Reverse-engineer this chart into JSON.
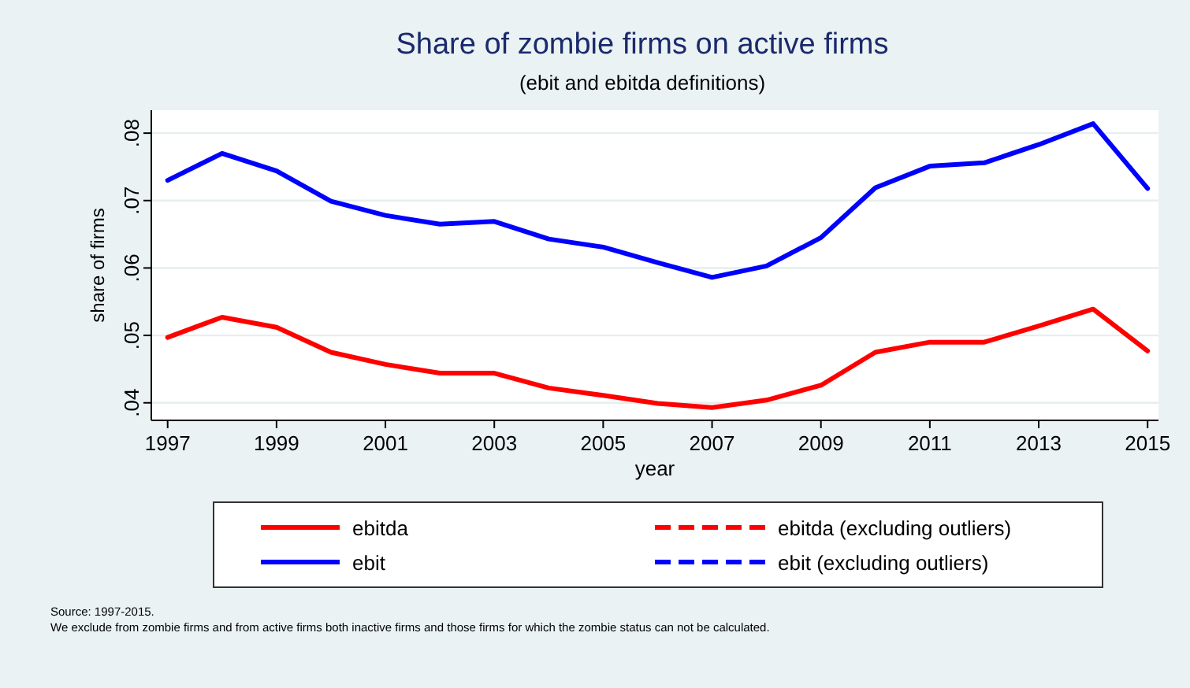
{
  "chart_data": {
    "type": "line",
    "title": "Share of zombie firms on active firms",
    "subtitle": "(ebit and ebitda definitions)",
    "xlabel": "year",
    "ylabel": "share of firms",
    "x": [
      1997,
      1998,
      1999,
      2000,
      2001,
      2002,
      2003,
      2004,
      2005,
      2006,
      2007,
      2008,
      2009,
      2010,
      2011,
      2012,
      2013,
      2014,
      2015
    ],
    "series": [
      {
        "name": "ebitda",
        "color": "#ff0000",
        "line_style": "solid",
        "values": [
          0.0497,
          0.0527,
          0.0512,
          0.0475,
          0.0457,
          0.0444,
          0.0444,
          0.0422,
          0.0411,
          0.0399,
          0.0393,
          0.0404,
          0.0426,
          0.0475,
          0.049,
          0.049,
          0.0514,
          0.0539,
          0.0477
        ]
      },
      {
        "name": "ebitda (excluding outliers)",
        "color": "#ff0000",
        "line_style": "dashed",
        "values": [
          null,
          null,
          null,
          null,
          null,
          null,
          null,
          null,
          null,
          null,
          null,
          null,
          null,
          null,
          null,
          null,
          null,
          null,
          null
        ]
      },
      {
        "name": "ebit",
        "color": "#0000ff",
        "line_style": "solid",
        "values": [
          0.073,
          0.077,
          0.0744,
          0.0699,
          0.0678,
          0.0665,
          0.0669,
          0.0643,
          0.0631,
          0.0608,
          0.0586,
          0.0603,
          0.0645,
          0.0719,
          0.0751,
          0.0756,
          0.0783,
          0.0814,
          0.0718
        ]
      },
      {
        "name": "ebit (excluding outliers)",
        "color": "#0000ff",
        "line_style": "dashed",
        "values": [
          null,
          null,
          null,
          null,
          null,
          null,
          null,
          null,
          null,
          null,
          null,
          null,
          null,
          null,
          null,
          null,
          null,
          null,
          null
        ]
      }
    ],
    "xlim": [
      1996.7,
      2015.2
    ],
    "xticks": [
      1997,
      1999,
      2001,
      2003,
      2005,
      2007,
      2009,
      2011,
      2013,
      2015
    ],
    "ylim": [
      0.0374,
      0.0834
    ],
    "yticks": [
      {
        "value": 0.04,
        "label": ".04"
      },
      {
        "value": 0.05,
        "label": ".05"
      },
      {
        "value": 0.06,
        "label": ".06"
      },
      {
        "value": 0.07,
        "label": ".07"
      },
      {
        "value": 0.08,
        "label": ".08"
      }
    ],
    "grid": "y",
    "legend": "bottom",
    "marker": "none",
    "annotations": [
      "Source: 1997-2015.",
      "We exclude from zombie firms and from active firms both inactive firms and those firms for which the zombie status can not be calculated."
    ]
  }
}
